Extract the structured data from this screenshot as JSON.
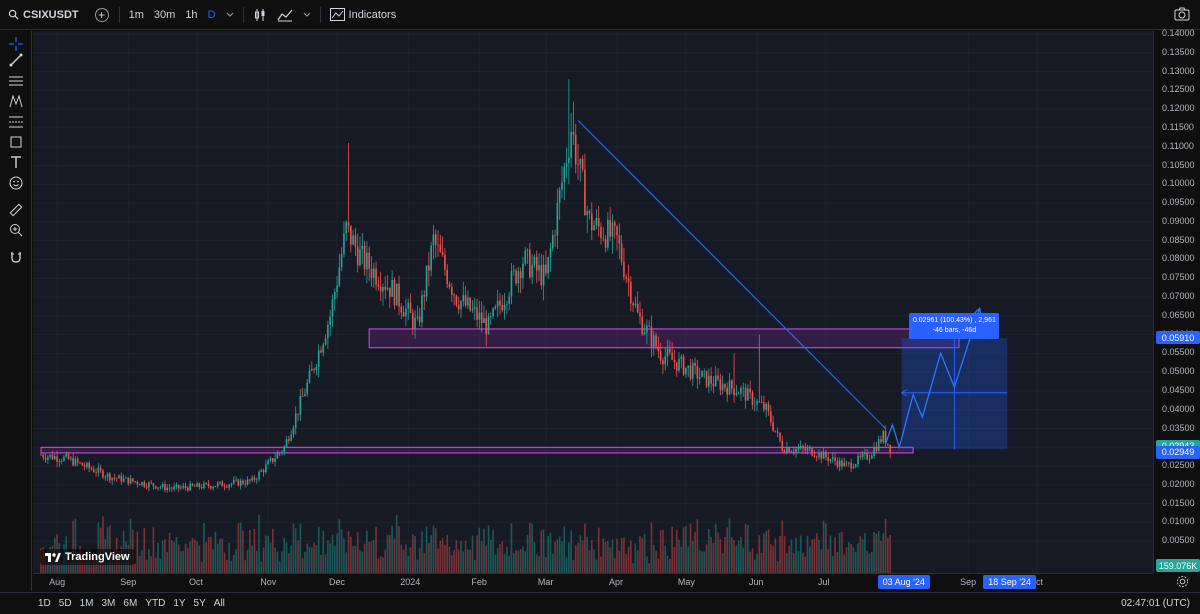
{
  "toolbar": {
    "symbol": "CSIXUSDT",
    "intervals": [
      "1m",
      "30m",
      "1h",
      "D"
    ],
    "active_interval": "D",
    "indicators_label": "Indicators"
  },
  "price_axis": {
    "ticks": [
      "0.14000",
      "0.13500",
      "0.13000",
      "0.12500",
      "0.12000",
      "0.11500",
      "0.11000",
      "0.10500",
      "0.10000",
      "0.09500",
      "0.09000",
      "0.08500",
      "0.08000",
      "0.07500",
      "0.07000",
      "0.06500",
      "0.06000",
      "0.05500",
      "0.05000",
      "0.04500",
      "0.04000",
      "0.03500",
      "0.03000",
      "0.02500",
      "0.02000",
      "0.01500",
      "0.01000",
      "0.00500"
    ],
    "badges": {
      "resistance": "0.05910",
      "last_price": "0.02943",
      "support": "0.02949",
      "volume": "159.076K"
    },
    "colors": {
      "resistance": "#2962ff",
      "last_price": "#26a69a",
      "support": "#2962ff",
      "volume": "#26a69a"
    }
  },
  "time_axis": {
    "labels": [
      "Aug",
      "Sep",
      "Oct",
      "Nov",
      "Dec",
      "2024",
      "Feb",
      "Mar",
      "Apr",
      "May",
      "Jun",
      "Jul",
      "Sep",
      "Oct"
    ],
    "range_badges": [
      "03 Aug '24",
      "18 Sep '24"
    ]
  },
  "measure_box": {
    "line1": "0.02961 (100.43%) , 2,961",
    "line2": "-46 bars, -46d"
  },
  "watermark": "TradingView",
  "bottom": {
    "ranges": [
      "1D",
      "5D",
      "1M",
      "3M",
      "6M",
      "YTD",
      "1Y",
      "5Y",
      "All"
    ],
    "clock": "02:47:01 (UTC)"
  },
  "colors": {
    "up": "#26a69a",
    "down": "#ef5350",
    "zone": "#9c27b0",
    "trendline": "#2962ff",
    "background": "#161a25"
  },
  "chart_data": {
    "type": "candlestick",
    "symbol": "CSIXUSDT",
    "interval": "D",
    "ylim": [
      0,
      0.14
    ],
    "anchors": [
      [
        "2023-07-25",
        0.028
      ],
      [
        "2023-08-05",
        0.027
      ],
      [
        "2023-08-25",
        0.022
      ],
      [
        "2023-09-20",
        0.019
      ],
      [
        "2023-10-10",
        0.02
      ],
      [
        "2023-10-25",
        0.021
      ],
      [
        "2023-11-08",
        0.03
      ],
      [
        "2023-11-20",
        0.05
      ],
      [
        "2023-11-28",
        0.065
      ],
      [
        "2023-12-05",
        0.088
      ],
      [
        "2023-12-12",
        0.08
      ],
      [
        "2023-12-25",
        0.072
      ],
      [
        "2024-01-05",
        0.062
      ],
      [
        "2024-01-12",
        0.085
      ],
      [
        "2024-01-22",
        0.07
      ],
      [
        "2024-02-05",
        0.062
      ],
      [
        "2024-02-20",
        0.08
      ],
      [
        "2024-03-01",
        0.075
      ],
      [
        "2024-03-12",
        0.115
      ],
      [
        "2024-03-20",
        0.09
      ],
      [
        "2024-04-01",
        0.085
      ],
      [
        "2024-04-10",
        0.065
      ],
      [
        "2024-04-20",
        0.055
      ],
      [
        "2024-05-10",
        0.048
      ],
      [
        "2024-05-25",
        0.045
      ],
      [
        "2024-06-05",
        0.04
      ],
      [
        "2024-06-12",
        0.03
      ],
      [
        "2024-06-25",
        0.029
      ],
      [
        "2024-07-10",
        0.025
      ],
      [
        "2024-07-20",
        0.028
      ],
      [
        "2024-07-26",
        0.033
      ],
      [
        "2024-07-29",
        0.03
      ]
    ],
    "zones": [
      {
        "from": "2023-12-15",
        "to": "2024-08-28",
        "low": 0.0565,
        "high": 0.0615
      },
      {
        "from": "2023-07-25",
        "to": "2024-08-08",
        "low": 0.0285,
        "high": 0.03
      }
    ],
    "trendline": [
      [
        "2024-03-15",
        0.117
      ],
      [
        "2024-07-27",
        0.035
      ]
    ],
    "projection": [
      [
        "2024-07-27",
        0.031
      ],
      [
        "2024-07-30",
        0.036
      ],
      [
        "2024-08-02",
        0.03
      ],
      [
        "2024-08-08",
        0.044
      ],
      [
        "2024-08-12",
        0.038
      ],
      [
        "2024-08-20",
        0.055
      ],
      [
        "2024-08-26",
        0.046
      ],
      [
        "2024-09-06",
        0.067
      ]
    ],
    "measure": {
      "from": "2024-08-03",
      "to": "2024-09-18",
      "low": 0.0295,
      "high": 0.0591,
      "mid": 0.0445
    }
  }
}
